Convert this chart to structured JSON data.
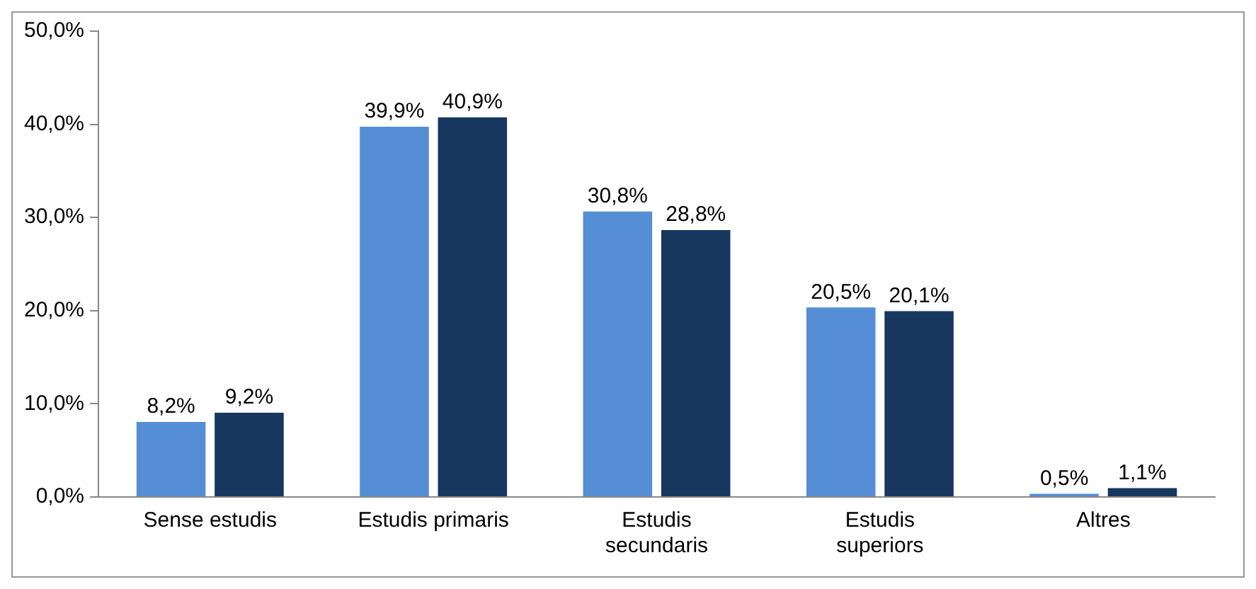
{
  "chart_data": {
    "type": "bar",
    "categories": [
      "Sense estudis",
      "Estudis primaris",
      "Estudis secundaris",
      "Estudis superiors",
      "Altres"
    ],
    "series": [
      {
        "color": "#558ed5",
        "values": [
          8.2,
          39.9,
          30.8,
          20.5,
          0.5
        ],
        "value_labels": [
          "8,2%",
          "39,9%",
          "30,8%",
          "20,5%",
          "0,5%"
        ]
      },
      {
        "color": "#17375e",
        "values": [
          9.2,
          40.9,
          28.8,
          20.1,
          1.1
        ],
        "value_labels": [
          "9,2%",
          "40,9%",
          "28,8%",
          "20,1%",
          "1,1%"
        ]
      }
    ],
    "ylim": [
      0,
      50
    ],
    "yticks": [
      {
        "value": 0,
        "label": "0,0%"
      },
      {
        "value": 10,
        "label": "10,0%"
      },
      {
        "value": 20,
        "label": "20,0%"
      },
      {
        "value": 30,
        "label": "30,0%"
      },
      {
        "value": 40,
        "label": "40,0%"
      },
      {
        "value": 50,
        "label": "50,0%"
      }
    ],
    "grid": false,
    "legend": false
  }
}
